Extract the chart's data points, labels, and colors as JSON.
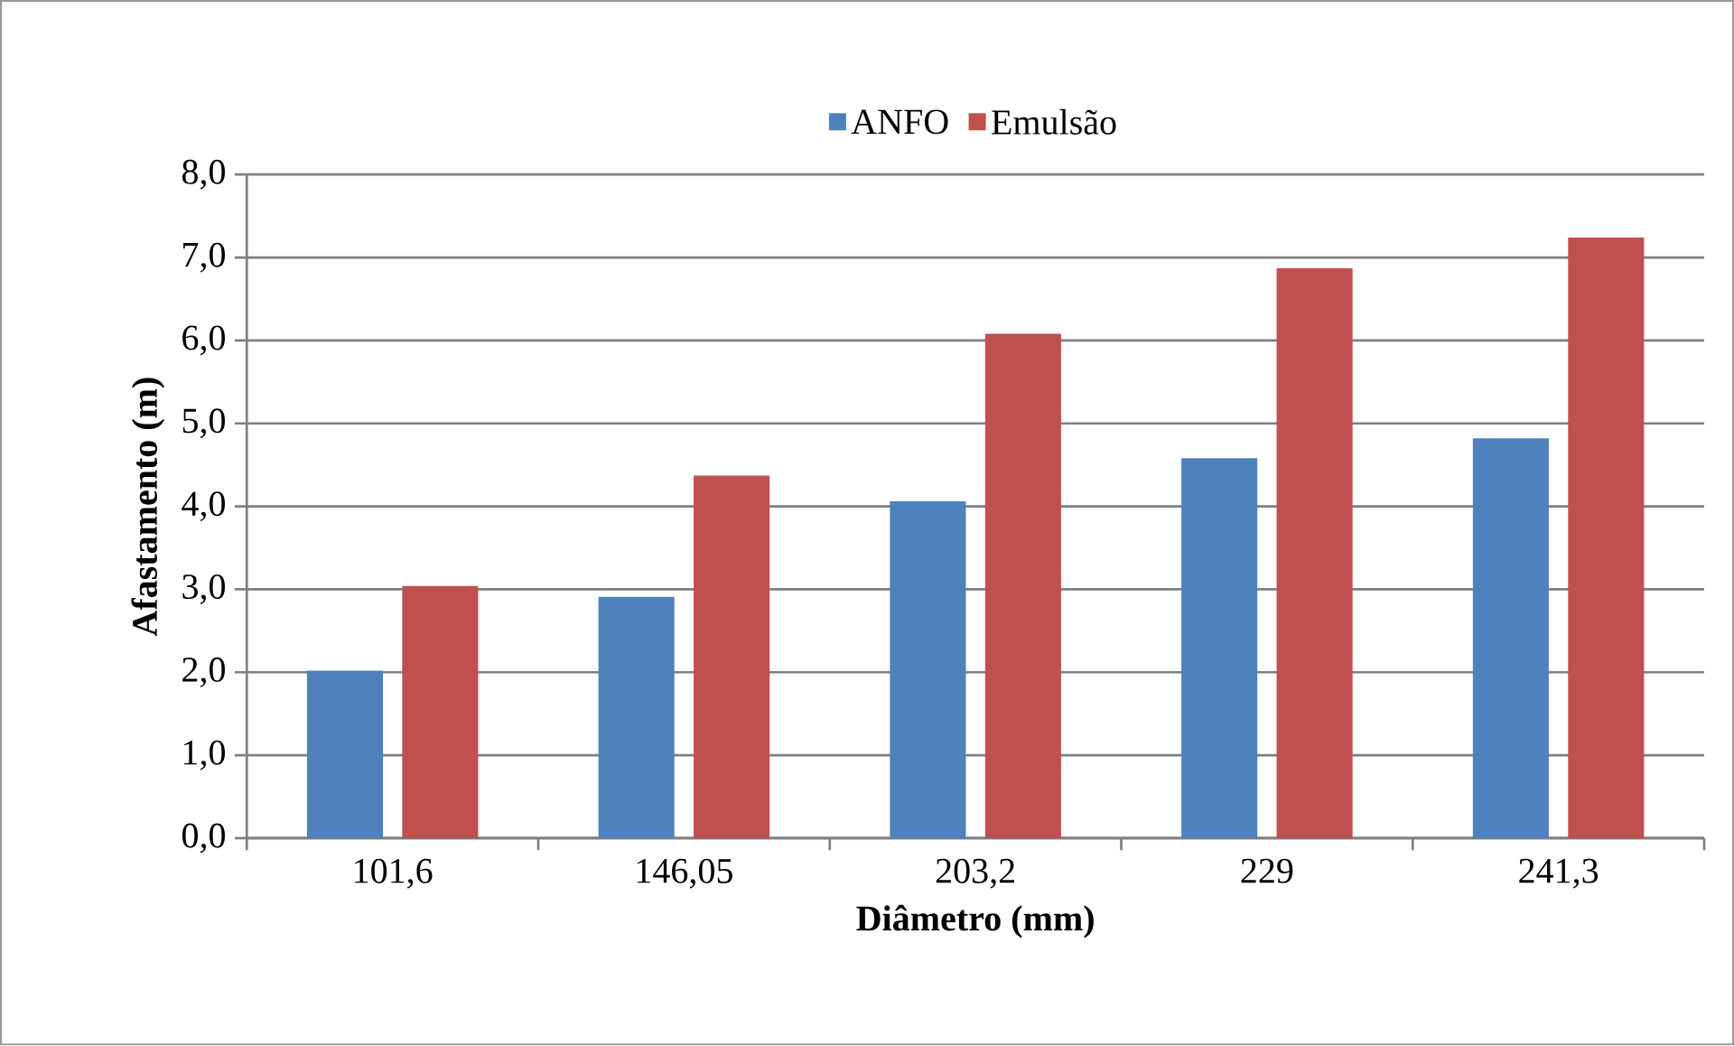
{
  "chart_data": {
    "type": "bar",
    "xlabel": "Diâmetro (mm)",
    "ylabel": "Afastamento (m)",
    "categories": [
      "101,6",
      "146,05",
      "203,2",
      "229",
      "241,3"
    ],
    "series": [
      {
        "name": "ANFO",
        "color": "#4f81bd",
        "values": [
          2.02,
          2.91,
          4.06,
          4.58,
          4.82
        ]
      },
      {
        "name": "Emulsão",
        "color": "#c0504d",
        "values": [
          3.04,
          4.37,
          6.08,
          6.87,
          7.24
        ]
      }
    ],
    "ylim": [
      0,
      8
    ],
    "yticks": [
      {
        "value": 0,
        "label": "0,0"
      },
      {
        "value": 1,
        "label": "1,0"
      },
      {
        "value": 2,
        "label": "2,0"
      },
      {
        "value": 3,
        "label": "3,0"
      },
      {
        "value": 4,
        "label": "4,0"
      },
      {
        "value": 5,
        "label": "5,0"
      },
      {
        "value": 6,
        "label": "6,0"
      },
      {
        "value": 7,
        "label": "7,0"
      },
      {
        "value": 8,
        "label": "8,0"
      }
    ],
    "grid": "y",
    "legend": "top"
  }
}
